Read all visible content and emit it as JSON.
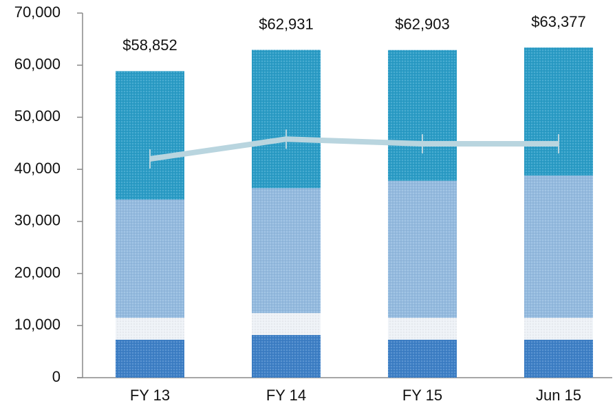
{
  "chart_data": {
    "type": "bar",
    "stacked": true,
    "categories": [
      "FY 13",
      "FY 14",
      "FY 15",
      "Jun 15"
    ],
    "series": [
      {
        "color": "#3d7fc6",
        "values": [
          7300,
          8200,
          7300,
          7300
        ]
      },
      {
        "color": "#eef2f7",
        "values": [
          4200,
          4200,
          4200,
          4200
        ]
      },
      {
        "color": "#93badf",
        "values": [
          22700,
          24000,
          26300,
          27300
        ]
      },
      {
        "color": "#2a9cc6",
        "values": [
          24652,
          26531,
          25103,
          24577
        ]
      },
      {
        "type": "line",
        "color": "#b9d5df",
        "values": [
          42000,
          45800,
          44900,
          44900
        ]
      }
    ],
    "totals": {
      "values": [
        58852,
        62931,
        62903,
        63377
      ],
      "value_labels": [
        "$58,852",
        "$62,931",
        "$62,903",
        "$63,377"
      ]
    },
    "ylim": [
      0,
      70000
    ],
    "yticks": [
      0,
      {
        "value": 10000,
        "label": "10,000"
      },
      {
        "value": 20000,
        "label": "20,000"
      },
      {
        "value": 30000,
        "label": "30,000"
      },
      {
        "value": 40000,
        "label": "40,000"
      },
      {
        "value": 50000,
        "label": "50,000"
      },
      {
        "value": 60000,
        "label": "60,000"
      },
      {
        "value": 70000,
        "label": "70,000"
      }
    ],
    "grid": false
  }
}
